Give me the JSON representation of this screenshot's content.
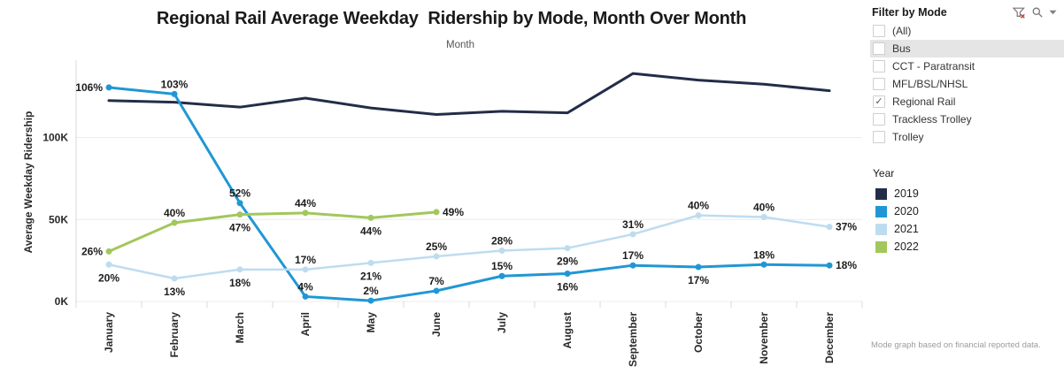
{
  "title": "Regional Rail Average Weekday  Ridership by Mode, Month Over Month",
  "caption": "Mode graph based on financial reported data.",
  "icons": {
    "checkmark": "✓"
  },
  "chart_data": {
    "type": "line",
    "categories": [
      "January",
      "February",
      "March",
      "April",
      "May",
      "June",
      "July",
      "August",
      "September",
      "October",
      "November",
      "December"
    ],
    "xlabel": "Month",
    "ylabel": "Average Weekday Ridership",
    "unit": "thousands of riders",
    "ylim": [
      0,
      147
    ],
    "grid": true,
    "legend_position": "right",
    "y_gridlines": [
      {
        "value": 0,
        "label": "0K"
      },
      {
        "value": 50,
        "label": "50K"
      },
      {
        "value": 100,
        "label": "100K"
      }
    ],
    "series": [
      {
        "name": "2019",
        "color": "#232d49",
        "line_width": 3,
        "show_points": false,
        "values": [
          122.5,
          121.5,
          118.5,
          124,
          118,
          114,
          116,
          115,
          139,
          135,
          132.5,
          128.5
        ],
        "point_labels": [
          null,
          null,
          null,
          null,
          null,
          null,
          null,
          null,
          null,
          null,
          null,
          null
        ],
        "label_positions": [
          null,
          null,
          null,
          null,
          null,
          null,
          null,
          null,
          null,
          null,
          null,
          null
        ]
      },
      {
        "name": "2020",
        "color": "#2097d4",
        "line_width": 3,
        "show_points": true,
        "values": [
          130.5,
          126.5,
          60,
          3,
          0.5,
          6.5,
          15.5,
          17,
          22,
          21,
          22.5,
          22
        ],
        "point_labels": [
          "106%",
          "103%",
          "52%",
          "4%",
          "2%",
          "7%",
          "15%",
          "16%",
          "17%",
          "17%",
          "18%",
          "18%"
        ],
        "label_positions": [
          "left",
          "above",
          "above",
          "above",
          "above",
          "above",
          "above",
          "below",
          "above",
          "below",
          "above",
          "right"
        ]
      },
      {
        "name": "2021",
        "color": "#bedcf0",
        "line_width": 2.5,
        "show_points": true,
        "values": [
          22.5,
          14,
          19.5,
          19.5,
          23.5,
          27.5,
          31,
          32.5,
          41,
          52.5,
          51.5,
          45.5
        ],
        "point_labels": [
          "20%",
          "13%",
          "18%",
          "17%",
          "21%",
          "25%",
          "28%",
          "29%",
          "31%",
          "40%",
          "40%",
          "37%"
        ],
        "label_positions": [
          "below",
          "below",
          "below",
          "above",
          "below",
          "above",
          "above",
          "below",
          "above",
          "above",
          "above",
          "right"
        ]
      },
      {
        "name": "2022",
        "color": "#a2c75c",
        "line_width": 3,
        "show_points": true,
        "values": [
          30.5,
          48,
          53,
          54,
          51,
          54.5,
          null,
          null,
          null,
          null,
          null,
          null
        ],
        "point_labels": [
          "26%",
          "40%",
          "47%",
          "44%",
          "44%",
          "49%",
          null,
          null,
          null,
          null,
          null,
          null
        ],
        "label_positions": [
          "left",
          "above",
          "below",
          "above",
          "below",
          "right",
          null,
          null,
          null,
          null,
          null,
          null
        ]
      }
    ]
  },
  "filter_panel": {
    "title": "Filter by Mode",
    "icon_names": [
      "clear-filter-icon",
      "search-icon",
      "caret-down-icon"
    ],
    "items": [
      {
        "label": "(All)",
        "checked": false,
        "highlighted": false
      },
      {
        "label": "Bus",
        "checked": false,
        "highlighted": true
      },
      {
        "label": "CCT - Paratransit",
        "checked": false,
        "highlighted": false
      },
      {
        "label": "MFL/BSL/NHSL",
        "checked": false,
        "highlighted": false
      },
      {
        "label": "Regional Rail",
        "checked": true,
        "highlighted": false
      },
      {
        "label": "Trackless Trolley",
        "checked": false,
        "highlighted": false
      },
      {
        "label": "Trolley",
        "checked": false,
        "highlighted": false
      }
    ]
  },
  "year_legend": {
    "title": "Year",
    "items": [
      {
        "label": "2019",
        "color": "#232d49"
      },
      {
        "label": "2020",
        "color": "#2097d4"
      },
      {
        "label": "2021",
        "color": "#bedcf0"
      },
      {
        "label": "2022",
        "color": "#a2c75c"
      }
    ]
  }
}
